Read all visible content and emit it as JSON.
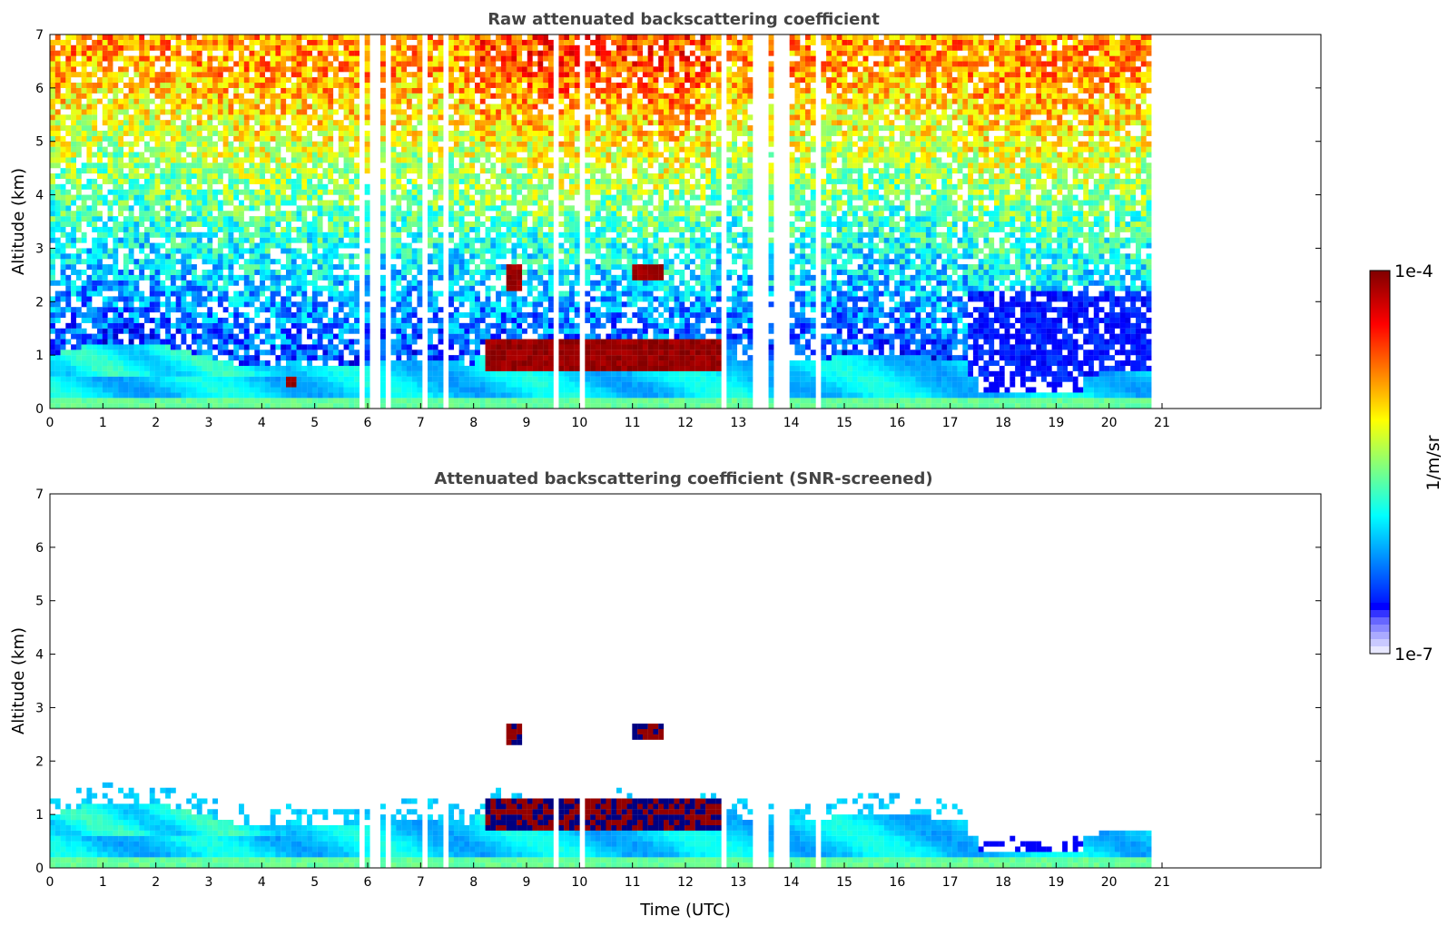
{
  "figure": {
    "colorbar": {
      "max_label": "1e-4",
      "min_label": "1e-7",
      "unit_label": "1/m/sr",
      "scale": "log",
      "range": [
        1e-07,
        0.0001
      ],
      "colormap": "jet",
      "low_end_colors": [
        "#e8e8ff",
        "#c9c9ff",
        "#aaaaff",
        "#8888ff",
        "#6666ff",
        "#3333ff",
        "#0000ff"
      ]
    },
    "x_axis_label": "Time (UTC)"
  },
  "chart_data": [
    {
      "type": "heatmap",
      "title": "Raw attenuated backscattering coefficient",
      "xlabel": "",
      "ylabel": "Altitude (km)",
      "xlim": [
        0,
        24
      ],
      "ylim": [
        0,
        7
      ],
      "x_ticks": [
        "0",
        "1",
        "2",
        "3",
        "4",
        "5",
        "6",
        "7",
        "8",
        "9",
        "10",
        "11",
        "12",
        "13",
        "14",
        "15",
        "16",
        "17",
        "18",
        "19",
        "20",
        "21"
      ],
      "y_ticks": [
        "0",
        "1",
        "2",
        "3",
        "4",
        "5",
        "6",
        "7"
      ],
      "grid": false,
      "data_extent_x": [
        0,
        20.8
      ],
      "missing_profiles_utc": [
        5.9,
        6.05,
        6.2,
        6.35,
        7.05,
        7.1,
        7.45,
        9.55,
        10.05,
        12.75,
        13.3,
        13.45,
        13.55,
        13.7,
        13.8,
        13.95,
        14.55
      ],
      "features": [
        {
          "kind": "boundary_layer",
          "time_range": [
            0,
            17.3
          ],
          "top_km": 1.0,
          "value": "high"
        },
        {
          "kind": "aerosol_layer",
          "time_range": [
            0,
            4.5
          ],
          "altitude_km": [
            0.6,
            1.5
          ],
          "value": "moderate"
        },
        {
          "kind": "cloud",
          "time_range": [
            8.2,
            12.8
          ],
          "altitude_km": [
            0.7,
            1.3
          ],
          "value": "1e-4"
        },
        {
          "kind": "cloud",
          "time_range": [
            11.0,
            11.6
          ],
          "altitude_km": [
            2.45,
            2.65
          ],
          "value": "1e-4"
        },
        {
          "kind": "cloud",
          "time_range": [
            8.6,
            8.9
          ],
          "altitude_km": [
            2.2,
            2.7
          ],
          "value": "1e-4"
        },
        {
          "kind": "cloud",
          "time_range": [
            4.5,
            4.65
          ],
          "altitude_km": [
            0.45,
            0.6
          ],
          "value": "1e-4"
        },
        {
          "kind": "clear_air_gap",
          "time_range": [
            17.5,
            19.5
          ],
          "altitude_km": [
            0.4,
            1.7
          ],
          "value": "1e-7"
        },
        {
          "kind": "background_noise",
          "time_range": [
            0,
            20.8
          ],
          "altitude_km": [
            1.5,
            7
          ],
          "value": "noisy"
        }
      ]
    },
    {
      "type": "heatmap",
      "title": "Attenuated backscattering coefficient (SNR-screened)",
      "xlabel": "Time (UTC)",
      "ylabel": "Altitude (km)",
      "xlim": [
        0,
        24
      ],
      "ylim": [
        0,
        7
      ],
      "x_ticks": [
        "0",
        "1",
        "2",
        "3",
        "4",
        "5",
        "6",
        "7",
        "8",
        "9",
        "10",
        "11",
        "12",
        "13",
        "14",
        "15",
        "16",
        "17",
        "18",
        "19",
        "20",
        "21"
      ],
      "y_ticks": [
        "0",
        "1",
        "2",
        "3",
        "4",
        "5",
        "6",
        "7"
      ],
      "grid": false,
      "data_extent_x": [
        0,
        20.8
      ],
      "missing_profiles_utc": [
        5.9,
        6.05,
        6.2,
        6.35,
        7.05,
        7.1,
        7.45,
        9.55,
        10.05,
        12.75,
        13.3,
        13.45,
        13.55,
        13.7,
        13.8,
        13.95,
        14.55
      ],
      "features": [
        {
          "kind": "boundary_layer",
          "time_range": [
            0,
            17.0
          ],
          "top_km": 1.2,
          "value": "high"
        },
        {
          "kind": "aerosol_layer",
          "time_range": [
            0,
            4.5
          ],
          "altitude_km": [
            0.6,
            1.6
          ],
          "value": "moderate"
        },
        {
          "kind": "cloud",
          "time_range": [
            8.2,
            12.8
          ],
          "altitude_km": [
            0.7,
            1.3
          ],
          "value": "1e-4"
        },
        {
          "kind": "cloud",
          "time_range": [
            11.0,
            11.6
          ],
          "altitude_km": [
            2.45,
            2.65
          ],
          "value": "1e-4"
        },
        {
          "kind": "cloud",
          "time_range": [
            8.6,
            8.9
          ],
          "altitude_km": [
            2.3,
            2.7
          ],
          "value": "1e-4"
        },
        {
          "kind": "screened_out",
          "time_range": [
            0,
            20.8
          ],
          "altitude_km": [
            1.6,
            7
          ],
          "value": "none"
        },
        {
          "kind": "thin_layer",
          "time_range": [
            17.8,
            20.8
          ],
          "altitude_km": [
            0.5,
            1.0
          ],
          "value": "low"
        }
      ]
    }
  ]
}
